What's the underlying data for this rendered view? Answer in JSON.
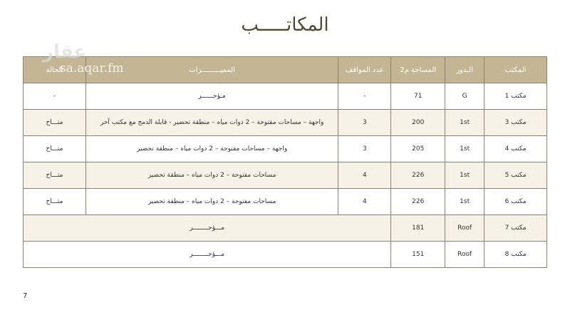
{
  "title": "المكاتـــــب",
  "watermark": {
    "logo": "عقار",
    "url": "sa.aqar.fm"
  },
  "headers": [
    "المكتب",
    "الـدور",
    "المساحة م2",
    "عدد المواقف",
    "المميـــــــــزات",
    "الحالة"
  ],
  "rows": [
    {
      "office": "مكتب 1",
      "floor": "G",
      "area": "71",
      "parking": "-",
      "features": "مـؤجــــــر",
      "status": "-"
    },
    {
      "office": "مكتب 3",
      "floor": "1st",
      "area": "200",
      "parking": "3",
      "features": "واجهة – مساحات مفتوحة – 2 دوات مياه – منطقة تحضير - قابلة الدمج مع مكتب آخر",
      "status": "متـــاح"
    },
    {
      "office": "مكتب 4",
      "floor": "1st",
      "area": "205",
      "parking": "3",
      "features": "واجهة – مساحات مفتوحة – 2 دوات مياه – منطقة تحضير",
      "status": "متـــاح"
    },
    {
      "office": "مكتب 5",
      "floor": "1st",
      "area": "226",
      "parking": "4",
      "features": "مساحات مفتوحة – 2 دوات مياه – منطقة تحضير",
      "status": "متـــاح"
    },
    {
      "office": "مكتب 6",
      "floor": "1st",
      "area": "226",
      "parking": "4",
      "features": "مساحات مفتوحة – 2 دوات مياه – منطقة تحضير",
      "status": "متـــاح"
    },
    {
      "office": "مكتب 7",
      "floor": "Roof",
      "area": "181",
      "merged": "مـــؤجــــــــر"
    },
    {
      "office": "مكتب 8",
      "floor": "Roof",
      "area": "151",
      "merged": "مـــؤجــــــــر"
    }
  ],
  "page_number": "7"
}
